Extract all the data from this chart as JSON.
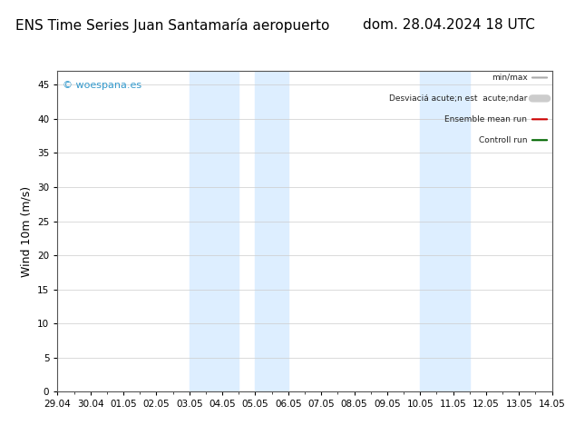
{
  "title": "ENS Time Series Juan Santamaría aeropuerto",
  "title_right": "dom. 28.04.2024 18 UTC",
  "ylabel": "Wind 10m (m/s)",
  "watermark": "© woespana.es",
  "x_labels": [
    "29.04",
    "30.04",
    "01.05",
    "02.05",
    "03.05",
    "04.05",
    "05.05",
    "06.05",
    "07.05",
    "08.05",
    "09.05",
    "10.05",
    "11.05",
    "12.05",
    "13.05",
    "14.05"
  ],
  "x_ticks": [
    0,
    1,
    2,
    3,
    4,
    5,
    6,
    7,
    8,
    9,
    10,
    11,
    12,
    13,
    14,
    15
  ],
  "ylim": [
    0,
    47
  ],
  "yticks": [
    0,
    5,
    10,
    15,
    20,
    25,
    30,
    35,
    40,
    45
  ],
  "background_color": "#ffffff",
  "plot_bg_color": "#ffffff",
  "shaded_bands": [
    {
      "x_start": 4.0,
      "x_end": 5.5,
      "color": "#ddeeff"
    },
    {
      "x_start": 6.0,
      "x_end": 7.0,
      "color": "#ddeeff"
    },
    {
      "x_start": 11.0,
      "x_end": 12.5,
      "color": "#ddeeff"
    }
  ],
  "legend_items": [
    {
      "label": "min/max",
      "color": "#aaaaaa",
      "lw": 1.5,
      "style": "solid"
    },
    {
      "label": "Desviaciá acute;n est  acute;ndar",
      "color": "#cccccc",
      "lw": 6,
      "style": "solid"
    },
    {
      "label": "Ensemble mean run",
      "color": "#cc0000",
      "lw": 1.5,
      "style": "solid"
    },
    {
      "label": "Controll run",
      "color": "#006600",
      "lw": 1.5,
      "style": "solid"
    }
  ],
  "title_fontsize": 11,
  "tick_fontsize": 7.5,
  "ylabel_fontsize": 9,
  "watermark_color": "#3399cc",
  "grid_color": "#cccccc"
}
